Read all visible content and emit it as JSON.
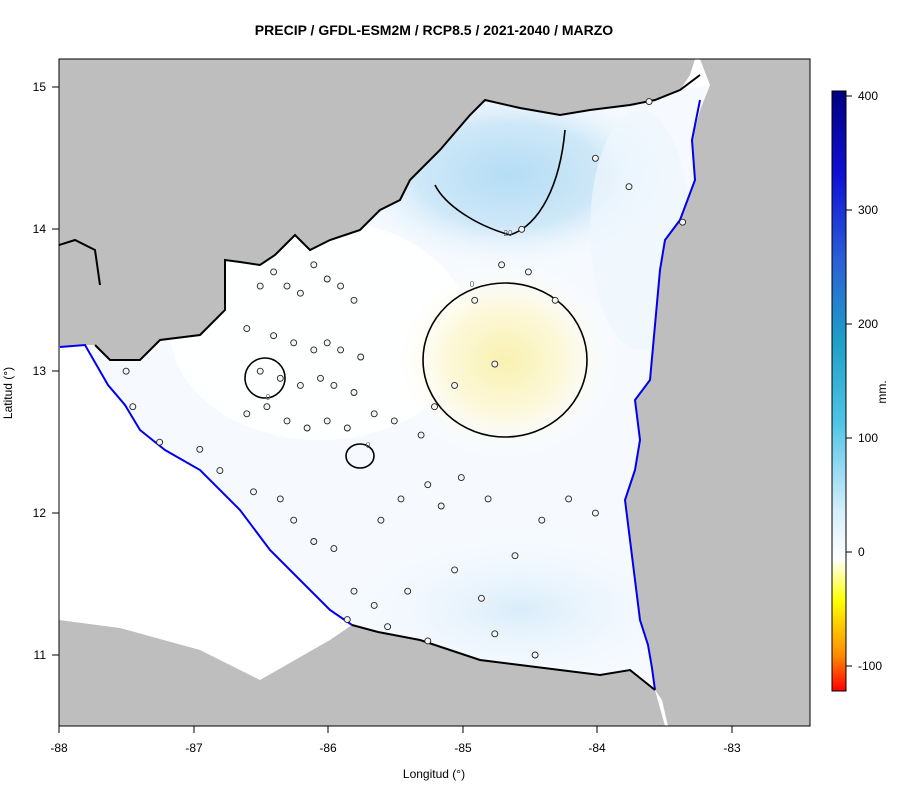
{
  "title": "PRECIP / GFDL-ESM2M / RCP8.5 / 2021-2040 / MARZO",
  "axes": {
    "xlabel": "Longitud (°)",
    "ylabel": "Latitud (°)",
    "x_ticks": [
      "-88",
      "-87",
      "-86",
      "-85",
      "-84",
      "-83"
    ],
    "y_ticks": [
      "15",
      "14",
      "13",
      "12",
      "11"
    ]
  },
  "colorbar": {
    "label": "mm.",
    "ticks": [
      "400",
      "300",
      "200",
      "100",
      "0",
      "-100"
    ],
    "range": [
      -120,
      400
    ]
  },
  "contour_labels": {
    "north": "20",
    "center": "0",
    "small_west": "0",
    "small_south": "0"
  },
  "colors": {
    "land_outside": "#bebebe",
    "coastline": "#0000ee",
    "border": "#000000",
    "contour": "#000000",
    "field_background": "#f6faff",
    "positive_light": "#e3f1fc",
    "positive_medium": "#bfe3f6",
    "negative_light": "#fffbe0",
    "negative_medium": "#fbf4b6"
  },
  "chart_data": {
    "type": "heatmap",
    "title": "PRECIP / GFDL-ESM2M / RCP8.5 / 2021-2040 / MARZO",
    "xlabel": "Longitud (°)",
    "ylabel": "Latitud (°)",
    "xlim": [
      -88.0,
      -82.4
    ],
    "ylim": [
      10.5,
      15.2
    ],
    "legend": "right",
    "contour_levels": [
      0,
      20
    ],
    "fields": [
      {
        "name": "north",
        "lon": -84.7,
        "lat": 14.3,
        "value": 30
      },
      {
        "name": "center",
        "lon": -84.75,
        "lat": 13.05,
        "value": -20
      },
      {
        "name": "west",
        "lon": -86.5,
        "lat": 13.0,
        "value": -5
      },
      {
        "name": "south",
        "lon": -85.8,
        "lat": 12.4,
        "value": -3
      }
    ],
    "stations": [
      {
        "lon": -86.5,
        "lat": 13.6
      },
      {
        "lon": -86.4,
        "lat": 13.7
      },
      {
        "lon": -86.3,
        "lat": 13.6
      },
      {
        "lon": -86.2,
        "lat": 13.55
      },
      {
        "lon": -86.1,
        "lat": 13.75
      },
      {
        "lon": -86.0,
        "lat": 13.65
      },
      {
        "lon": -85.9,
        "lat": 13.6
      },
      {
        "lon": -85.8,
        "lat": 13.5
      },
      {
        "lon": -86.6,
        "lat": 13.3
      },
      {
        "lon": -86.4,
        "lat": 13.25
      },
      {
        "lon": -86.25,
        "lat": 13.2
      },
      {
        "lon": -86.1,
        "lat": 13.15
      },
      {
        "lon": -86.0,
        "lat": 13.2
      },
      {
        "lon": -85.9,
        "lat": 13.15
      },
      {
        "lon": -85.75,
        "lat": 13.1
      },
      {
        "lon": -86.5,
        "lat": 13.0
      },
      {
        "lon": -86.35,
        "lat": 12.95
      },
      {
        "lon": -86.2,
        "lat": 12.9
      },
      {
        "lon": -86.05,
        "lat": 12.95
      },
      {
        "lon": -85.95,
        "lat": 12.9
      },
      {
        "lon": -85.8,
        "lat": 12.85
      },
      {
        "lon": -86.6,
        "lat": 12.7
      },
      {
        "lon": -86.45,
        "lat": 12.75
      },
      {
        "lon": -86.3,
        "lat": 12.65
      },
      {
        "lon": -86.15,
        "lat": 12.6
      },
      {
        "lon": -86.0,
        "lat": 12.65
      },
      {
        "lon": -85.85,
        "lat": 12.6
      },
      {
        "lon": -85.65,
        "lat": 12.7
      },
      {
        "lon": -85.5,
        "lat": 12.65
      },
      {
        "lon": -85.3,
        "lat": 12.55
      },
      {
        "lon": -85.2,
        "lat": 12.75
      },
      {
        "lon": -85.05,
        "lat": 12.9
      },
      {
        "lon": -84.75,
        "lat": 13.05
      },
      {
        "lon": -84.9,
        "lat": 13.5
      },
      {
        "lon": -84.7,
        "lat": 13.75
      },
      {
        "lon": -84.5,
        "lat": 13.7
      },
      {
        "lon": -84.55,
        "lat": 14.0
      },
      {
        "lon": -84.3,
        "lat": 13.5
      },
      {
        "lon": -84.0,
        "lat": 14.5
      },
      {
        "lon": -83.75,
        "lat": 14.3
      },
      {
        "lon": -83.35,
        "lat": 14.05
      },
      {
        "lon": -83.6,
        "lat": 14.9
      },
      {
        "lon": -87.5,
        "lat": 13.0
      },
      {
        "lon": -87.45,
        "lat": 12.75
      },
      {
        "lon": -87.25,
        "lat": 12.5
      },
      {
        "lon": -86.95,
        "lat": 12.45
      },
      {
        "lon": -86.8,
        "lat": 12.3
      },
      {
        "lon": -86.55,
        "lat": 12.15
      },
      {
        "lon": -86.35,
        "lat": 12.1
      },
      {
        "lon": -86.25,
        "lat": 11.95
      },
      {
        "lon": -86.1,
        "lat": 11.8
      },
      {
        "lon": -85.95,
        "lat": 11.75
      },
      {
        "lon": -85.8,
        "lat": 11.45
      },
      {
        "lon": -85.65,
        "lat": 11.35
      },
      {
        "lon": -85.85,
        "lat": 11.25
      },
      {
        "lon": -85.55,
        "lat": 11.2
      },
      {
        "lon": -85.4,
        "lat": 11.45
      },
      {
        "lon": -85.25,
        "lat": 11.1
      },
      {
        "lon": -85.05,
        "lat": 11.6
      },
      {
        "lon": -84.85,
        "lat": 11.4
      },
      {
        "lon": -84.75,
        "lat": 11.15
      },
      {
        "lon": -84.45,
        "lat": 11.0
      },
      {
        "lon": -84.6,
        "lat": 11.7
      },
      {
        "lon": -84.4,
        "lat": 11.95
      },
      {
        "lon": -84.2,
        "lat": 12.1
      },
      {
        "lon": -84.0,
        "lat": 12.0
      },
      {
        "lon": -84.8,
        "lat": 12.1
      },
      {
        "lon": -85.0,
        "lat": 12.25
      },
      {
        "lon": -85.25,
        "lat": 12.2
      },
      {
        "lon": -85.45,
        "lat": 12.1
      },
      {
        "lon": -85.6,
        "lat": 11.95
      },
      {
        "lon": -85.15,
        "lat": 12.05
      }
    ]
  }
}
